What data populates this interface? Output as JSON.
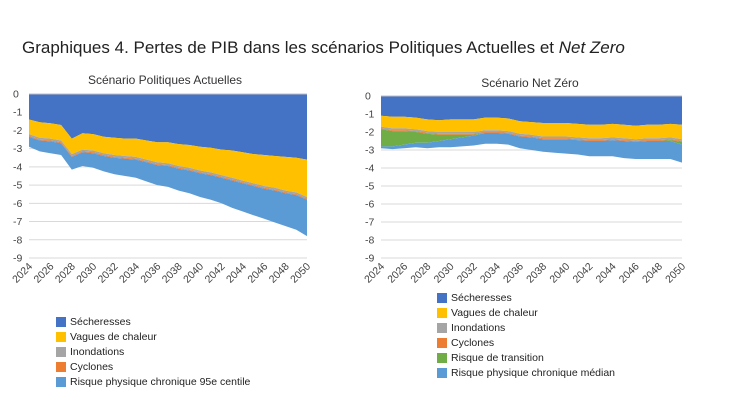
{
  "title": {
    "prefix": "Graphiques 4. Pertes de PIB dans les scénarios Politiques Actuelles et ",
    "emphasis": "Net Zero"
  },
  "chart_data": [
    {
      "type": "area",
      "stacked": true,
      "title": "Scénario Politiques Actuelles",
      "xlabel": "",
      "ylabel": "",
      "ylim": [
        -9,
        0
      ],
      "y_ticks": [
        "0",
        "-1",
        "-2",
        "-3",
        "-4",
        "-5",
        "-6",
        "-7",
        "-8",
        "-9"
      ],
      "x": [
        2024,
        2025,
        2026,
        2027,
        2028,
        2029,
        2030,
        2031,
        2032,
        2033,
        2034,
        2035,
        2036,
        2037,
        2038,
        2039,
        2040,
        2041,
        2042,
        2043,
        2044,
        2045,
        2046,
        2047,
        2048,
        2049,
        2050
      ],
      "x_ticks": [
        "2024",
        "2026",
        "2028",
        "2030",
        "2032",
        "2034",
        "2036",
        "2038",
        "2040",
        "2042",
        "2044",
        "2046",
        "2048",
        "2050"
      ],
      "grid": true,
      "legend_position": "bottom",
      "series": [
        {
          "name": "Sécheresses",
          "color": "#4472C4",
          "values": [
            -1.4,
            -1.55,
            -1.6,
            -1.7,
            -2.45,
            -2.15,
            -2.2,
            -2.35,
            -2.4,
            -2.45,
            -2.45,
            -2.55,
            -2.65,
            -2.65,
            -2.75,
            -2.8,
            -2.9,
            -2.95,
            -3.05,
            -3.1,
            -3.2,
            -3.3,
            -3.35,
            -3.4,
            -3.45,
            -3.5,
            -3.6
          ]
        },
        {
          "name": "Vagues de chaleur",
          "color": "#FFC000",
          "values": [
            -0.8,
            -0.85,
            -0.85,
            -0.85,
            -0.85,
            -0.9,
            -0.9,
            -0.9,
            -0.95,
            -0.95,
            -1.0,
            -1.05,
            -1.1,
            -1.15,
            -1.2,
            -1.25,
            -1.3,
            -1.35,
            -1.4,
            -1.5,
            -1.55,
            -1.6,
            -1.7,
            -1.75,
            -1.85,
            -1.9,
            -2.05
          ]
        },
        {
          "name": "Inondations",
          "color": "#A5A5A5",
          "values": [
            -0.1,
            -0.1,
            -0.1,
            -0.1,
            -0.1,
            -0.1,
            -0.1,
            -0.1,
            -0.1,
            -0.1,
            -0.1,
            -0.1,
            -0.1,
            -0.1,
            -0.1,
            -0.1,
            -0.1,
            -0.1,
            -0.1,
            -0.1,
            -0.1,
            -0.1,
            -0.1,
            -0.1,
            -0.1,
            -0.1,
            -0.1
          ]
        },
        {
          "name": "Cyclones",
          "color": "#ED7D31",
          "values": [
            -0.05,
            -0.05,
            -0.05,
            -0.05,
            -0.05,
            -0.05,
            -0.05,
            -0.05,
            -0.05,
            -0.05,
            -0.05,
            -0.05,
            -0.05,
            -0.05,
            -0.05,
            -0.05,
            -0.05,
            -0.05,
            -0.05,
            -0.05,
            -0.05,
            -0.05,
            -0.05,
            -0.05,
            -0.05,
            -0.05,
            -0.05
          ]
        },
        {
          "name": "Risque physique chronique 95e centile",
          "color": "#5B9BD5",
          "values": [
            -0.55,
            -0.6,
            -0.65,
            -0.65,
            -0.7,
            -0.75,
            -0.8,
            -0.85,
            -0.9,
            -0.95,
            -1.0,
            -1.05,
            -1.1,
            -1.15,
            -1.2,
            -1.25,
            -1.3,
            -1.35,
            -1.4,
            -1.5,
            -1.55,
            -1.6,
            -1.65,
            -1.75,
            -1.8,
            -1.9,
            -2.0
          ]
        }
      ]
    },
    {
      "type": "area",
      "stacked": true,
      "title": "Scénario Net Zéro",
      "xlabel": "",
      "ylabel": "",
      "ylim": [
        -9,
        0
      ],
      "y_ticks": [
        "0",
        "-1",
        "-2",
        "-3",
        "-4",
        "-5",
        "-6",
        "-7",
        "-8",
        "-9"
      ],
      "x": [
        2024,
        2025,
        2026,
        2027,
        2028,
        2029,
        2030,
        2031,
        2032,
        2033,
        2034,
        2035,
        2036,
        2037,
        2038,
        2039,
        2040,
        2041,
        2042,
        2043,
        2044,
        2045,
        2046,
        2047,
        2048,
        2049,
        2050
      ],
      "x_ticks": [
        "2024",
        "2026",
        "2028",
        "2030",
        "2032",
        "2034",
        "2036",
        "2038",
        "2040",
        "2042",
        "2044",
        "2046",
        "2048",
        "2050"
      ],
      "grid": true,
      "legend_position": "bottom",
      "series": [
        {
          "name": "Sécheresses",
          "color": "#4472C4",
          "values": [
            -1.1,
            -1.15,
            -1.15,
            -1.2,
            -1.3,
            -1.35,
            -1.3,
            -1.3,
            -1.3,
            -1.2,
            -1.2,
            -1.25,
            -1.4,
            -1.45,
            -1.5,
            -1.5,
            -1.5,
            -1.55,
            -1.6,
            -1.6,
            -1.55,
            -1.6,
            -1.65,
            -1.6,
            -1.6,
            -1.55,
            -1.6
          ]
        },
        {
          "name": "Vagues de chaleur",
          "color": "#FFC000",
          "values": [
            -0.6,
            -0.65,
            -0.65,
            -0.65,
            -0.65,
            -0.65,
            -0.7,
            -0.7,
            -0.7,
            -0.7,
            -0.7,
            -0.7,
            -0.7,
            -0.7,
            -0.75,
            -0.75,
            -0.75,
            -0.75,
            -0.75,
            -0.75,
            -0.75,
            -0.75,
            -0.75,
            -0.75,
            -0.75,
            -0.75,
            -0.8
          ]
        },
        {
          "name": "Inondations",
          "color": "#A5A5A5",
          "values": [
            -0.1,
            -0.1,
            -0.1,
            -0.1,
            -0.1,
            -0.1,
            -0.1,
            -0.1,
            -0.1,
            -0.1,
            -0.1,
            -0.1,
            -0.1,
            -0.1,
            -0.1,
            -0.1,
            -0.1,
            -0.1,
            -0.1,
            -0.1,
            -0.1,
            -0.1,
            -0.1,
            -0.1,
            -0.1,
            -0.1,
            -0.1
          ]
        },
        {
          "name": "Cyclones",
          "color": "#ED7D31",
          "values": [
            -0.05,
            -0.05,
            -0.05,
            -0.05,
            -0.05,
            -0.05,
            -0.05,
            -0.05,
            -0.05,
            -0.05,
            -0.05,
            -0.05,
            -0.05,
            -0.05,
            -0.05,
            -0.05,
            -0.05,
            -0.05,
            -0.05,
            -0.05,
            -0.05,
            -0.05,
            -0.05,
            -0.05,
            -0.05,
            -0.05,
            -0.05
          ]
        },
        {
          "name": "Risque de transition",
          "color": "#70AD47",
          "values": [
            -0.95,
            -0.85,
            -0.75,
            -0.6,
            -0.5,
            -0.35,
            -0.25,
            -0.15,
            -0.05,
            0,
            0,
            0,
            0,
            0,
            0,
            0,
            0,
            0,
            0,
            0,
            0,
            0,
            0,
            0,
            0,
            -0.05,
            -0.15
          ]
        },
        {
          "name": "Risque physique chronique médian",
          "color": "#5B9BD5",
          "values": [
            -0.1,
            -0.15,
            -0.2,
            -0.25,
            -0.3,
            -0.35,
            -0.45,
            -0.5,
            -0.55,
            -0.6,
            -0.6,
            -0.6,
            -0.65,
            -0.7,
            -0.7,
            -0.75,
            -0.8,
            -0.8,
            -0.85,
            -0.85,
            -0.9,
            -0.95,
            -0.95,
            -1.0,
            -1.0,
            -1.0,
            -1.0
          ]
        }
      ]
    }
  ]
}
